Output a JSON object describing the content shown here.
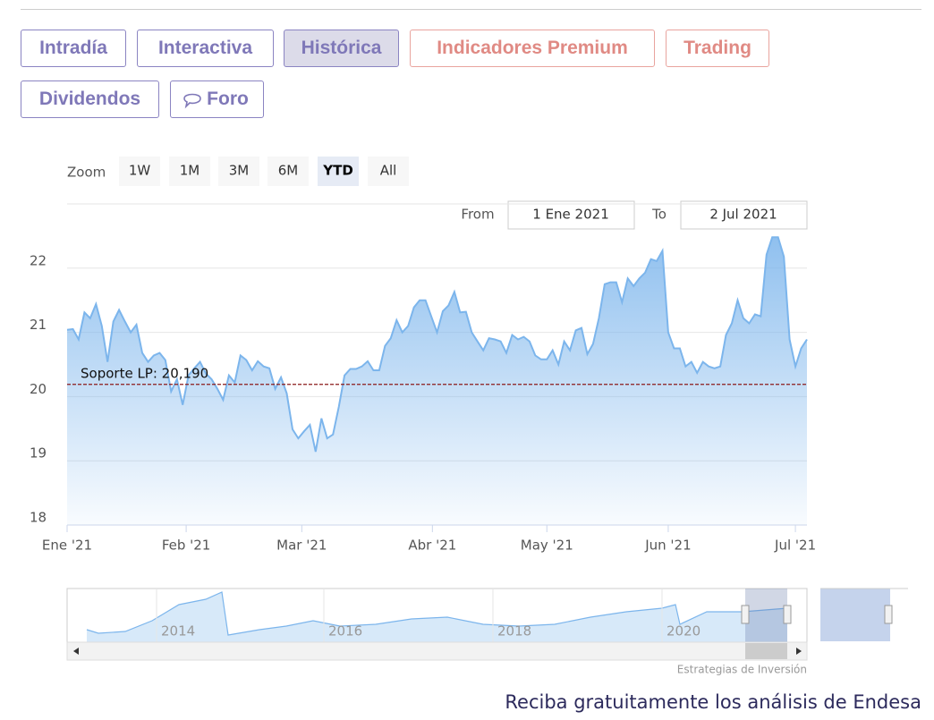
{
  "tabs": [
    "Intradía",
    "Interactiva",
    "Histórica",
    "Indicadores Premium",
    "Trading",
    "Dividendos",
    "Foro"
  ],
  "chart_data": {
    "type": "area",
    "zoom_label": "Zoom",
    "zoom_buttons": [
      "1W",
      "1M",
      "3M",
      "6M",
      "YTD",
      "All"
    ],
    "selected_zoom": "YTD",
    "from_label": "From",
    "from": "1 Ene 2021",
    "to_label": "To",
    "to": "2 Jul 2021",
    "color": "#7cb5ec",
    "values": [
      21.04,
      21.05,
      20.89,
      21.31,
      21.22,
      21.44,
      21.1,
      20.54,
      21.17,
      21.35,
      21.17,
      21.0,
      21.12,
      20.68,
      20.54,
      20.64,
      20.68,
      20.57,
      20.08,
      20.27,
      19.87,
      20.33,
      20.44,
      20.54,
      20.36,
      20.27,
      20.12,
      19.95,
      20.33,
      20.22,
      20.64,
      20.57,
      20.41,
      20.55,
      20.47,
      20.44,
      20.12,
      20.3,
      20.05,
      19.49,
      19.35,
      19.46,
      19.56,
      19.14,
      19.66,
      19.35,
      19.41,
      19.84,
      20.33,
      20.43,
      20.43,
      20.47,
      20.55,
      20.41,
      20.41,
      20.79,
      20.91,
      21.19,
      21.0,
      21.1,
      21.39,
      21.5,
      21.5,
      21.25,
      21.0,
      21.33,
      21.42,
      21.63,
      21.31,
      21.32,
      21.0,
      20.86,
      20.72,
      20.91,
      20.89,
      20.86,
      20.68,
      20.96,
      20.89,
      20.93,
      20.86,
      20.64,
      20.58,
      20.58,
      20.72,
      20.5,
      20.86,
      20.72,
      21.03,
      21.07,
      20.66,
      20.82,
      21.22,
      21.75,
      21.78,
      21.78,
      21.47,
      21.84,
      21.72,
      21.84,
      21.93,
      22.14,
      22.11,
      22.27,
      21.0,
      20.75,
      20.75,
      20.47,
      20.54,
      20.37,
      20.54,
      20.47,
      20.44,
      20.47,
      20.96,
      21.14,
      21.5,
      21.22,
      21.14,
      21.28,
      21.25,
      22.21,
      22.48,
      22.48,
      22.18,
      20.89,
      20.47,
      20.75,
      20.89
    ],
    "xlim": [
      0,
      128
    ],
    "xticks": [
      {
        "value": 0,
        "label": "Ene '21"
      },
      {
        "value": 20.6,
        "label": "Feb '21"
      },
      {
        "value": 40.6,
        "label": "Mar '21"
      },
      {
        "value": 63.2,
        "label": "Abr '21"
      },
      {
        "value": 83,
        "label": "May '21"
      },
      {
        "value": 104,
        "label": "Jun '21"
      },
      {
        "value": 126,
        "label": "Jul '21"
      }
    ],
    "ylim": [
      18,
      23
    ],
    "yticks": [
      18,
      19,
      20,
      21,
      22
    ],
    "grid": true,
    "annotations": [
      {
        "label": "Soporte LP: 20,190",
        "value": 20.19,
        "color": "#8b1a1a"
      }
    ],
    "navigator_labels": [
      "2014",
      "2016",
      "2018",
      "2020"
    ],
    "credit": "Estrategias de Inversión"
  },
  "footer": "Reciba gratuitamente los análisis de Endesa"
}
